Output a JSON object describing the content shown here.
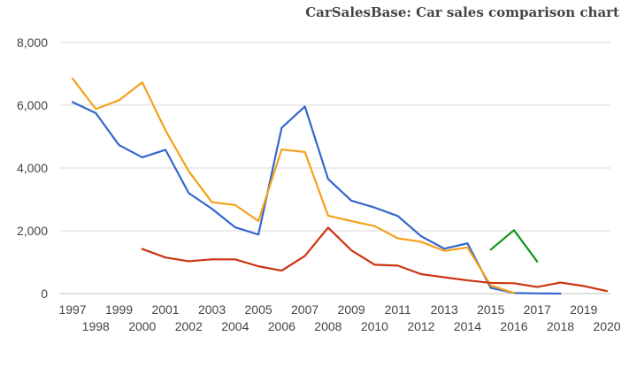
{
  "chart_data": {
    "type": "line",
    "title": "CarSalesBase: Car sales comparison chart",
    "xlabel": "",
    "ylabel": "",
    "x": [
      1997,
      1998,
      1999,
      2000,
      2001,
      2002,
      2003,
      2004,
      2005,
      2006,
      2007,
      2008,
      2009,
      2010,
      2011,
      2012,
      2013,
      2014,
      2015,
      2016,
      2017,
      2018,
      2019,
      2020
    ],
    "ylim": [
      0,
      8000
    ],
    "yticks": [
      0,
      2000,
      4000,
      6000,
      8000
    ],
    "ytick_labels": [
      "0",
      "2,000",
      "4,000",
      "6,000",
      "8,000"
    ],
    "grid": true,
    "legend": "none",
    "series": [
      {
        "color": "#3366cc",
        "values": [
          6100,
          5750,
          4730,
          4340,
          4580,
          3200,
          2700,
          2110,
          1880,
          5280,
          5960,
          3650,
          2960,
          2740,
          2470,
          1830,
          1430,
          1600,
          180,
          20,
          5,
          0,
          null,
          null
        ]
      },
      {
        "color": "#f4a11a",
        "values": [
          6850,
          5880,
          6160,
          6730,
          5200,
          3900,
          2910,
          2820,
          2310,
          4590,
          4510,
          2480,
          2310,
          2150,
          1760,
          1650,
          1360,
          1470,
          260,
          20,
          null,
          null,
          null,
          null
        ]
      },
      {
        "color": "#cc3311",
        "values": [
          null,
          null,
          null,
          1420,
          1150,
          1030,
          1090,
          1090,
          870,
          730,
          1200,
          2100,
          1380,
          920,
          890,
          620,
          520,
          420,
          340,
          330,
          210,
          350,
          240,
          80
        ]
      },
      {
        "color": "#109618",
        "values": [
          null,
          null,
          null,
          null,
          null,
          null,
          null,
          null,
          null,
          null,
          null,
          null,
          null,
          null,
          null,
          null,
          null,
          null,
          1400,
          2020,
          1020,
          null,
          null,
          null
        ]
      }
    ]
  }
}
